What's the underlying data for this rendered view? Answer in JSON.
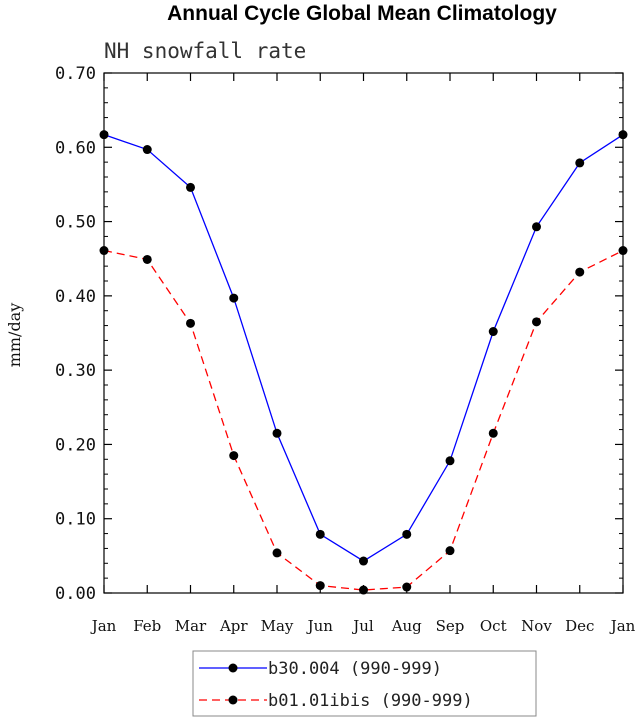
{
  "chart_data": {
    "type": "line",
    "title": "Annual Cycle Global Mean Climatology",
    "subtitle": "NH snowfall rate",
    "ylabel": "mm/day",
    "xlabel": "",
    "ylim": [
      0,
      0.7
    ],
    "yticks": [
      "0.00",
      "0.10",
      "0.20",
      "0.30",
      "0.40",
      "0.50",
      "0.60",
      "0.70"
    ],
    "categories": [
      "Jan",
      "Feb",
      "Mar",
      "Apr",
      "May",
      "Jun",
      "Jul",
      "Aug",
      "Sep",
      "Oct",
      "Nov",
      "Dec",
      "Jan"
    ],
    "series": [
      {
        "name": "b30.004 (990-999)",
        "color": "#0000ff",
        "dashed": false,
        "values": [
          0.617,
          0.597,
          0.546,
          0.397,
          0.215,
          0.079,
          0.043,
          0.079,
          0.178,
          0.352,
          0.493,
          0.579,
          0.617
        ]
      },
      {
        "name": "b01.01ibis (990-999)",
        "color": "#ff0000",
        "dashed": true,
        "values": [
          0.461,
          0.449,
          0.363,
          0.185,
          0.054,
          0.01,
          0.004,
          0.008,
          0.057,
          0.215,
          0.365,
          0.432,
          0.461
        ]
      }
    ],
    "legend_position": "bottom-center"
  }
}
